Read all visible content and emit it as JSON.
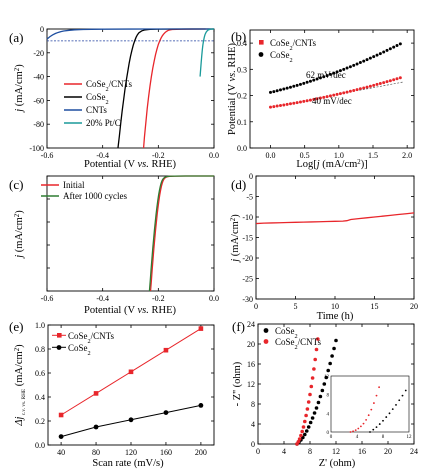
{
  "colors": {
    "red": "#e8262b",
    "black": "#000000",
    "blue": "#1f4fa0",
    "teal": "#1a9a9a",
    "green": "#2e7d32",
    "dashed": "#1f3f9f"
  },
  "chart_data": [
    {
      "panel": "(a)",
      "type": "line",
      "xlabel_parts": [
        "Potential (V ",
        "vs.",
        " RHE)"
      ],
      "ylabel_parts": [
        "j",
        " (mA/cm",
        "2",
        ")"
      ],
      "xlim": [
        -0.6,
        0.0
      ],
      "ylim": [
        -100,
        0
      ],
      "xticks": [
        -0.6,
        -0.4,
        -0.2,
        0.0
      ],
      "xtick_labels": [
        "-0.6",
        "-0.4",
        "-0.2",
        "0.0"
      ],
      "yticks": [
        0,
        -20,
        -40,
        -60,
        -80,
        -100
      ],
      "ytick_labels": [
        "0",
        "-20",
        "-40",
        "-60",
        "-80",
        "-100"
      ],
      "legend": [
        {
          "text": "CoSe",
          "sub": "2",
          "text2": "/CNTs",
          "color": "#e8262b"
        },
        {
          "text": "CoSe",
          "sub": "2",
          "text2": "",
          "color": "#000000"
        },
        {
          "text": "CNTs",
          "sub": "",
          "text2": "",
          "color": "#1f4fa0"
        },
        {
          "text": "20% Pt/C",
          "sub": "",
          "text2": "",
          "color": "#1a9a9a"
        }
      ],
      "series": [
        {
          "color": "#e8262b",
          "x": [
            -0.253,
            -0.25,
            -0.245,
            -0.24,
            -0.235,
            -0.23,
            -0.225,
            -0.22,
            -0.215,
            -0.21,
            -0.205,
            -0.2,
            -0.195,
            -0.19,
            -0.185,
            -0.18,
            -0.175,
            -0.17,
            -0.165,
            -0.16,
            -0.15,
            -0.12,
            -0.08,
            -0.03
          ],
          "y": [
            -100,
            -91,
            -79,
            -67,
            -57,
            -48,
            -40,
            -33,
            -27,
            -21.5,
            -17,
            -13,
            -10,
            -7.5,
            -5.5,
            -4,
            -2.8,
            -1.9,
            -1.2,
            -0.8,
            -0.4,
            -0.15,
            -0.05,
            0
          ]
        },
        {
          "color": "#000000",
          "x": [
            -0.345,
            -0.34,
            -0.335,
            -0.33,
            -0.325,
            -0.32,
            -0.315,
            -0.31,
            -0.305,
            -0.3,
            -0.295,
            -0.29,
            -0.285,
            -0.28,
            -0.275,
            -0.27,
            -0.26,
            -0.25,
            -0.23,
            -0.2,
            -0.1,
            0.0
          ],
          "y": [
            -100,
            -90,
            -79,
            -69,
            -60,
            -51,
            -43,
            -36,
            -29,
            -23,
            -18,
            -13.5,
            -10,
            -7,
            -4.8,
            -3.2,
            -1.6,
            -0.8,
            -0.3,
            -0.1,
            -0.02,
            0
          ]
        },
        {
          "color": "#1f4fa0",
          "x": [
            -0.6,
            -0.59,
            -0.58,
            -0.57,
            -0.56,
            -0.55,
            -0.54,
            -0.52,
            -0.5,
            -0.47,
            -0.44,
            -0.4,
            -0.3,
            -0.2,
            -0.1,
            0.0
          ],
          "y": [
            -8.5,
            -6.5,
            -5,
            -3.8,
            -2.9,
            -2.2,
            -1.7,
            -1.1,
            -0.7,
            -0.4,
            -0.25,
            -0.15,
            -0.05,
            -0.02,
            0,
            0
          ]
        },
        {
          "color": "#1a9a9a",
          "x": [
            -0.05,
            -0.048,
            -0.046,
            -0.044,
            -0.042,
            -0.04,
            -0.038,
            -0.035,
            -0.032,
            -0.028,
            -0.024,
            -0.02,
            -0.015,
            -0.01,
            -0.005,
            0.0
          ],
          "y": [
            -40,
            -34,
            -28,
            -22.5,
            -17.5,
            -13.5,
            -10.5,
            -7,
            -4.5,
            -2.6,
            -1.4,
            -0.7,
            -0.3,
            -0.1,
            -0.03,
            0
          ]
        }
      ],
      "reference_line": {
        "y": -10,
        "color": "#1f3f9f"
      }
    },
    {
      "panel": "(b)",
      "type": "scatter",
      "xlabel_parts": [
        "Log[",
        "j",
        " (mA/cm",
        "2",
        ")]"
      ],
      "ylabel_parts": [
        "Potential (V ",
        "vs.",
        " RHE)"
      ],
      "xlim": [
        -0.3,
        2.1
      ],
      "ylim": [
        0.0,
        0.45
      ],
      "xticks": [
        0.0,
        0.5,
        1.0,
        1.5,
        2.0
      ],
      "xtick_labels": [
        "0.0",
        "0.5",
        "1.0",
        "1.5",
        "2.0"
      ],
      "yticks": [
        0.0,
        0.1,
        0.2,
        0.3,
        0.4
      ],
      "ytick_labels": [
        "0.0",
        "0.1",
        "0.2",
        "0.3",
        "0.4"
      ],
      "legend": [
        {
          "text": "CoSe",
          "sub": "2",
          "text2": "/CNTs",
          "color": "#e8262b",
          "marker": "square"
        },
        {
          "text": "CoSe",
          "sub": "2",
          "text2": "",
          "color": "#000000",
          "marker": "circle"
        }
      ],
      "annotations": [
        "62 mV/dec",
        "40 mV/dec"
      ],
      "series": [
        {
          "color": "#e8262b",
          "x_range": [
            0.0,
            1.9
          ],
          "y_start": 0.156,
          "slope": 0.04,
          "curvature": 0.0045,
          "points": 40
        },
        {
          "color": "#000000",
          "x_range": [
            0.0,
            1.9
          ],
          "y_start": 0.212,
          "slope": 0.062,
          "curvature": 0.0085,
          "points": 40
        }
      ]
    },
    {
      "panel": "(c)",
      "type": "line",
      "xlabel_parts": [
        "Potential (V ",
        "vs.",
        " RHE)"
      ],
      "ylabel_parts": [
        "j",
        " (mA/cm",
        "2",
        ")"
      ],
      "xlim": [
        -0.6,
        0.0
      ],
      "ylim": [
        -100,
        0
      ],
      "xticks": [
        -0.6,
        -0.4,
        -0.2,
        0.0
      ],
      "xtick_labels": [
        "-0.6",
        "-0.4",
        "-0.2",
        "0.0"
      ],
      "yticks": [
        0,
        -20,
        -40,
        -60,
        -80,
        -100
      ],
      "ytick_labels": [],
      "legend": [
        {
          "text": "Initial",
          "sub": "",
          "text2": "",
          "color": "#e8262b"
        },
        {
          "text": "After 1000 cycles",
          "sub": "",
          "text2": "",
          "color": "#2e7d32"
        }
      ],
      "series": [
        {
          "color": "#e8262b",
          "x": [
            -0.228,
            -0.225,
            -0.222,
            -0.219,
            -0.216,
            -0.213,
            -0.21,
            -0.207,
            -0.204,
            -0.201,
            -0.198,
            -0.195,
            -0.192,
            -0.189,
            -0.186,
            -0.183,
            -0.18,
            -0.175,
            -0.17,
            -0.16,
            -0.14,
            -0.1,
            -0.05,
            0.0
          ],
          "y": [
            -100,
            -91,
            -81,
            -72,
            -63,
            -55,
            -47,
            -40,
            -33,
            -27,
            -21.5,
            -16.5,
            -12.5,
            -9,
            -6.3,
            -4.2,
            -2.8,
            -1.5,
            -0.8,
            -0.3,
            -0.1,
            -0.03,
            -0.01,
            0
          ]
        },
        {
          "color": "#2e7d32",
          "x": [
            -0.232,
            -0.229,
            -0.226,
            -0.223,
            -0.22,
            -0.217,
            -0.214,
            -0.211,
            -0.208,
            -0.205,
            -0.202,
            -0.199,
            -0.196,
            -0.193,
            -0.19,
            -0.187,
            -0.184,
            -0.179,
            -0.174,
            -0.164,
            -0.144,
            -0.104,
            -0.054,
            0.0
          ],
          "y": [
            -100,
            -91,
            -81,
            -72,
            -63,
            -55,
            -47,
            -40,
            -33,
            -27,
            -21.5,
            -16.5,
            -12.5,
            -9,
            -6.3,
            -4.2,
            -2.8,
            -1.5,
            -0.8,
            -0.3,
            -0.1,
            -0.03,
            -0.01,
            0
          ]
        }
      ]
    },
    {
      "panel": "(d)",
      "type": "line",
      "xlabel_parts": [
        "Time (h)"
      ],
      "ylabel_parts": [
        "j",
        " (mA/cm",
        "2",
        ")"
      ],
      "xlim": [
        0,
        20
      ],
      "ylim": [
        -30,
        0
      ],
      "xticks": [
        0,
        5,
        10,
        15,
        20
      ],
      "xtick_labels": [
        "0",
        "5",
        "10",
        "15",
        "20"
      ],
      "yticks": [
        0,
        -5,
        -10,
        -15,
        -20,
        -25,
        -30
      ],
      "ytick_labels": [
        "0",
        "-5",
        "-10",
        "-15",
        "-20",
        "-25",
        "-30"
      ],
      "legend": [],
      "series": [
        {
          "color": "#e8262b",
          "x": [
            0,
            1,
            2,
            3,
            4,
            5,
            6,
            7,
            8,
            9,
            10,
            11,
            11.5,
            12,
            13,
            14,
            15,
            16,
            17,
            18,
            19,
            20
          ],
          "y": [
            -11.6,
            -11.5,
            -11.45,
            -11.4,
            -11.35,
            -11.3,
            -11.25,
            -11.2,
            -11.15,
            -11.1,
            -11.05,
            -11.0,
            -10.9,
            -10.6,
            -10.4,
            -10.2,
            -10.0,
            -9.8,
            -9.6,
            -9.4,
            -9.2,
            -9.0
          ]
        }
      ]
    },
    {
      "panel": "(e)",
      "type": "scatter",
      "xlabel_parts": [
        "Scan rate (mV/s)"
      ],
      "ylabel_parts": [
        "Δj",
        " c.v. vs. RHE",
        " (mA/cm",
        "2",
        ")"
      ],
      "xlim": [
        25,
        215
      ],
      "ylim": [
        0.0,
        1.0
      ],
      "xticks": [
        40,
        80,
        120,
        160,
        200
      ],
      "xtick_labels": [
        "40",
        "80",
        "120",
        "160",
        "200"
      ],
      "yticks": [
        0.0,
        0.2,
        0.4,
        0.6,
        0.8,
        1.0
      ],
      "ytick_labels": [
        "0.0",
        "0.2",
        "0.4",
        "0.6",
        "0.8",
        "1.0"
      ],
      "legend": [
        {
          "text": "CoSe",
          "sub": "2",
          "text2": "/CNTs",
          "color": "#e8262b",
          "marker": "square"
        },
        {
          "text": "CoSe",
          "sub": "2",
          "text2": "",
          "color": "#000000",
          "marker": "circle"
        }
      ],
      "series": [
        {
          "color": "#e8262b",
          "marker": "square",
          "x": [
            40,
            80,
            120,
            160,
            200
          ],
          "y": [
            0.25,
            0.43,
            0.61,
            0.79,
            0.97
          ]
        },
        {
          "color": "#000000",
          "marker": "circle",
          "x": [
            40,
            80,
            120,
            160,
            200
          ],
          "y": [
            0.07,
            0.15,
            0.21,
            0.27,
            0.33
          ]
        }
      ]
    },
    {
      "panel": "(f)",
      "type": "scatter",
      "xlabel_parts": [
        "Z' (ohm)"
      ],
      "ylabel_parts": [
        "- Z''",
        " (ohm)"
      ],
      "xlim": [
        0,
        24
      ],
      "ylim": [
        0,
        24
      ],
      "xticks": [
        0,
        4,
        8,
        12,
        16,
        20,
        24
      ],
      "xtick_labels": [
        "0",
        "4",
        "8",
        "12",
        "16",
        "20",
        "24"
      ],
      "yticks": [
        0,
        4,
        8,
        12,
        16,
        20,
        24
      ],
      "ytick_labels": [
        "0",
        "4",
        "8",
        "12",
        "16",
        "20",
        "24"
      ],
      "legend": [
        {
          "text": "CoSe",
          "sub": "2",
          "text2": "",
          "color": "#000000",
          "marker": "circle"
        },
        {
          "text": "CoSe",
          "sub": "2",
          "text2": "/CNTs",
          "color": "#e8262b",
          "marker": "circle"
        }
      ],
      "series": [
        {
          "color": "#000000",
          "x": [
            6.0,
            6.3,
            6.6,
            6.9,
            7.2,
            7.5,
            7.8,
            8.1,
            8.4,
            8.7,
            9.0,
            9.3,
            9.6,
            9.9,
            10.2,
            10.5,
            10.8,
            11.1,
            11.4,
            11.7,
            12.0
          ],
          "y": [
            0.0,
            0.35,
            0.8,
            1.3,
            1.9,
            2.6,
            3.4,
            4.3,
            5.2,
            6.2,
            7.2,
            8.3,
            9.5,
            10.7,
            12.0,
            13.3,
            14.7,
            16.1,
            17.6,
            19.1,
            20.7
          ]
        },
        {
          "color": "#e8262b",
          "x": [
            6.0,
            6.2,
            6.4,
            6.6,
            6.8,
            7.0,
            7.2,
            7.4,
            7.6,
            7.8,
            8.0,
            8.2,
            8.4,
            8.6,
            8.8,
            9.0,
            9.2
          ],
          "y": [
            0.0,
            0.45,
            1.0,
            1.7,
            2.5,
            3.4,
            4.5,
            5.7,
            7.0,
            8.4,
            9.9,
            11.5,
            13.2,
            15.0,
            16.9,
            18.9,
            21.0
          ]
        }
      ],
      "inset": {
        "xticks": [
          0,
          4,
          8,
          12
        ],
        "xtick_labels": [
          "0",
          "4",
          "8",
          "12"
        ],
        "yticks": [
          0,
          4,
          8,
          12
        ],
        "ytick_labels": [
          "0",
          "4",
          "8",
          "12"
        ],
        "xlim": [
          0,
          12
        ],
        "ylim": [
          0,
          12
        ],
        "series": [
          {
            "color": "#000000",
            "x": [
              6.0,
              6.5,
              7.0,
              7.5,
              8.0,
              8.5,
              9.0,
              9.5,
              10.0,
              10.5,
              11.0,
              11.5
            ],
            "y": [
              0.0,
              0.5,
              1.05,
              1.7,
              2.4,
              3.2,
              4.0,
              4.9,
              5.8,
              6.8,
              7.8,
              8.9
            ]
          },
          {
            "color": "#e8262b",
            "x": [
              3.0,
              3.4,
              3.8,
              4.2,
              4.6,
              5.0,
              5.4,
              5.8,
              6.2,
              6.6,
              7.0,
              7.4
            ],
            "y": [
              0.0,
              0.15,
              0.4,
              0.75,
              1.2,
              1.8,
              2.6,
              3.6,
              4.8,
              6.2,
              7.8,
              9.6
            ]
          }
        ]
      }
    }
  ]
}
